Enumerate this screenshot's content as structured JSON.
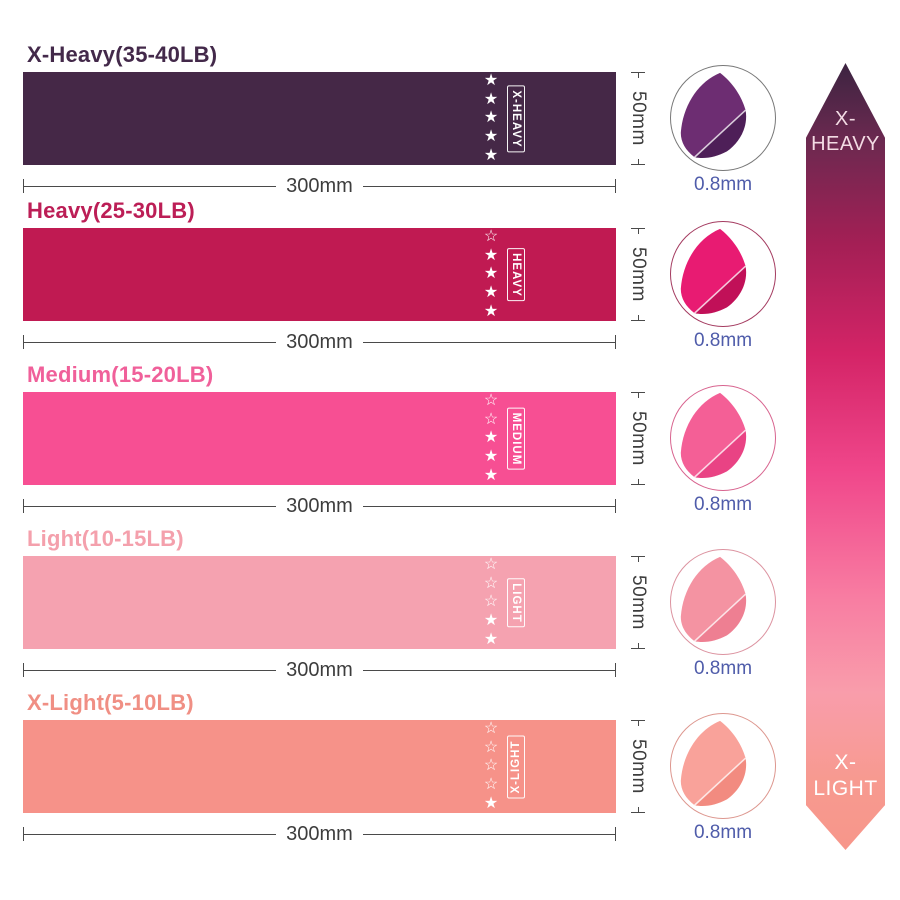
{
  "rows": [
    {
      "title": "X-Heavy(35-40LB)",
      "band_label": "X-HEAVY",
      "stars_filled": 5,
      "stars_total": 5,
      "width_label": "300mm",
      "height_label": "50mm",
      "thickness_label": "0.8mm",
      "band_color": "#452847",
      "title_color": "#43294a",
      "circle_face": "#6d2d72",
      "circle_under": "#4e1f58",
      "circle_border": "#787878",
      "label_flip": false
    },
    {
      "title": "Heavy(25-30LB)",
      "band_label": "HEAVY",
      "stars_filled": 4,
      "stars_total": 5,
      "width_label": "300mm",
      "height_label": "50mm",
      "thickness_label": "0.8mm",
      "band_color": "#c01a52",
      "title_color": "#bc1e56",
      "circle_face": "#e81b72",
      "circle_under": "#c11058",
      "circle_border": "#a43b60",
      "label_flip": false
    },
    {
      "title": "Medium(15-20LB)",
      "band_label": "MEDIUM",
      "stars_filled": 3,
      "stars_total": 5,
      "width_label": "300mm",
      "height_label": "50mm",
      "thickness_label": "0.8mm",
      "band_color": "#f74f93",
      "title_color": "#f0609a",
      "circle_face": "#f45f96",
      "circle_under": "#e94384",
      "circle_border": "#d8648f",
      "label_flip": false
    },
    {
      "title": "Light(10-15LB)",
      "band_label": "LIGHT",
      "stars_filled": 2,
      "stars_total": 5,
      "width_label": "300mm",
      "height_label": "50mm",
      "thickness_label": "0.8mm",
      "band_color": "#f5a2b0",
      "title_color": "#f4a0ac",
      "circle_face": "#f493a2",
      "circle_under": "#ee7f92",
      "circle_border": "#dc93a0",
      "label_flip": false
    },
    {
      "title": "X-Light(5-10LB)",
      "band_label": "X-LIGHT",
      "stars_filled": 1,
      "stars_total": 5,
      "width_label": "300mm",
      "height_label": "50mm",
      "thickness_label": "0.8mm",
      "band_color": "#f69289",
      "title_color": "#f08f84",
      "circle_face": "#f9a29a",
      "circle_under": "#f28b80",
      "circle_border": "#dd978f",
      "label_flip": true
    }
  ],
  "row_tops": [
    42,
    198,
    362,
    526,
    690
  ],
  "star_glyphs": {
    "filled": "★",
    "outline": "☆"
  },
  "thickness_text_color": "#4f5caa",
  "dimension_color": "#3d3d3d",
  "arrow": {
    "top_lines": [
      "X-",
      "HEAVY"
    ],
    "bottom_lines": [
      "X-",
      "LIGHT"
    ],
    "gradient": [
      {
        "color": "#3c2441",
        "stop": 0
      },
      {
        "color": "#6c2950",
        "stop": 10
      },
      {
        "color": "#a41f55",
        "stop": 23
      },
      {
        "color": "#d42467",
        "stop": 37
      },
      {
        "color": "#f0478b",
        "stop": 52
      },
      {
        "color": "#f87da2",
        "stop": 68
      },
      {
        "color": "#f99dab",
        "stop": 80
      },
      {
        "color": "#f79a90",
        "stop": 91
      },
      {
        "color": "#f7968a",
        "stop": 100
      }
    ]
  }
}
